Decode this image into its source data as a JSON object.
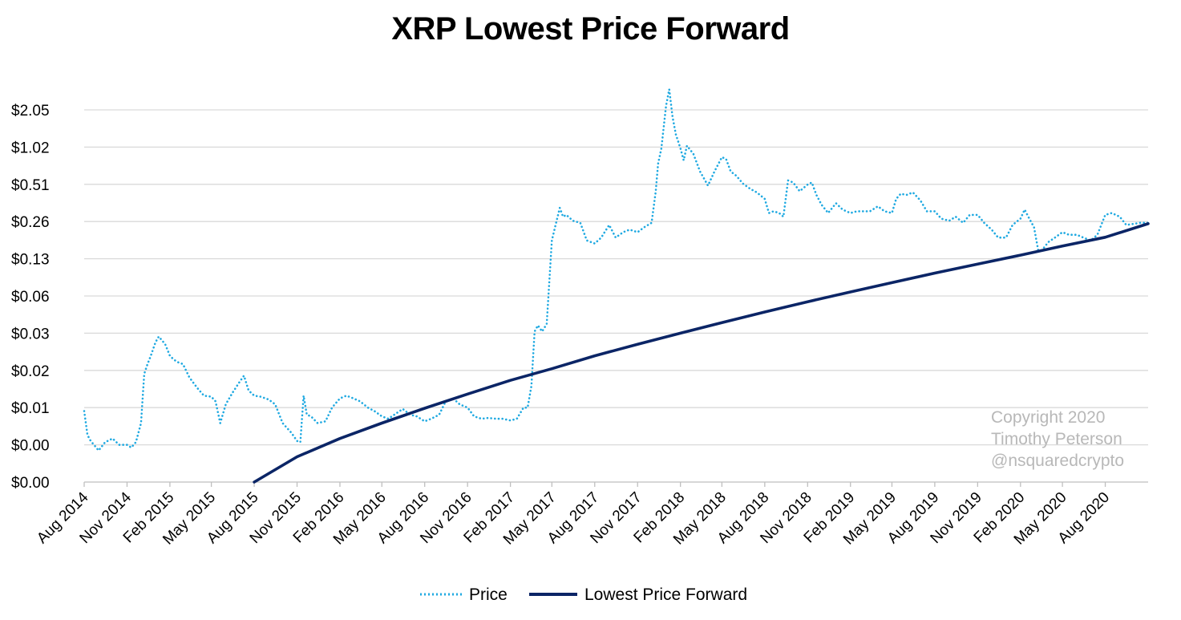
{
  "chart_data": {
    "type": "line",
    "title": "XRP Lowest Price Forward",
    "y_scale": "log",
    "y_ticks": [
      "$0.00",
      "$0.00",
      "$0.01",
      "$0.02",
      "$0.03",
      "$0.06",
      "$0.13",
      "$0.26",
      "$0.51",
      "$1.02",
      "$2.05"
    ],
    "y_tick_values": [
      0.002,
      0.004,
      0.008,
      0.016,
      0.032,
      0.064,
      0.128,
      0.256,
      0.512,
      1.024,
      2.048
    ],
    "x_ticks": [
      "Aug 2014",
      "Nov 2014",
      "Feb 2015",
      "May 2015",
      "Aug 2015",
      "Nov 2015",
      "Feb 2016",
      "May 2016",
      "Aug 2016",
      "Nov 2016",
      "Feb 2017",
      "May 2017",
      "Aug 2017",
      "Nov 2017",
      "Feb 2018",
      "May 2018",
      "Aug 2018",
      "Nov 2018",
      "Feb 2019",
      "May 2019",
      "Aug 2019",
      "Nov 2019",
      "Feb 2020",
      "May 2020",
      "Aug 2020"
    ],
    "x_range": [
      "2014-08-01",
      "2020-11-01"
    ],
    "legend_position": "bottom",
    "gridlines": "horizontal",
    "series": [
      {
        "name": "Price",
        "style": "dotted",
        "color": "#1fa9e1",
        "points": [
          [
            "2014-08-01",
            0.0075
          ],
          [
            "2014-08-08",
            0.0048
          ],
          [
            "2014-08-15",
            0.0043
          ],
          [
            "2014-08-22",
            0.004
          ],
          [
            "2014-09-01",
            0.0036
          ],
          [
            "2014-09-15",
            0.0042
          ],
          [
            "2014-10-01",
            0.0045
          ],
          [
            "2014-10-15",
            0.004
          ],
          [
            "2014-11-01",
            0.004
          ],
          [
            "2014-11-10",
            0.0038
          ],
          [
            "2014-11-20",
            0.0042
          ],
          [
            "2014-12-01",
            0.006
          ],
          [
            "2014-12-08",
            0.015
          ],
          [
            "2014-12-15",
            0.018
          ],
          [
            "2014-12-22",
            0.021
          ],
          [
            "2015-01-01",
            0.027
          ],
          [
            "2015-01-08",
            0.03
          ],
          [
            "2015-01-15",
            0.028
          ],
          [
            "2015-01-22",
            0.026
          ],
          [
            "2015-02-01",
            0.021
          ],
          [
            "2015-02-10",
            0.0195
          ],
          [
            "2015-02-20",
            0.0185
          ],
          [
            "2015-03-01",
            0.018
          ],
          [
            "2015-03-15",
            0.014
          ],
          [
            "2015-04-01",
            0.0115
          ],
          [
            "2015-04-15",
            0.01
          ],
          [
            "2015-05-01",
            0.0098
          ],
          [
            "2015-05-10",
            0.009
          ],
          [
            "2015-05-20",
            0.006
          ],
          [
            "2015-06-01",
            0.0085
          ],
          [
            "2015-06-15",
            0.0105
          ],
          [
            "2015-07-01",
            0.013
          ],
          [
            "2015-07-10",
            0.0145
          ],
          [
            "2015-07-20",
            0.011
          ],
          [
            "2015-08-01",
            0.01
          ],
          [
            "2015-08-15",
            0.0098
          ],
          [
            "2015-09-01",
            0.0093
          ],
          [
            "2015-09-15",
            0.0085
          ],
          [
            "2015-10-01",
            0.006
          ],
          [
            "2015-10-10",
            0.0055
          ],
          [
            "2015-10-20",
            0.005
          ],
          [
            "2015-11-01",
            0.0043
          ],
          [
            "2015-11-08",
            0.0042
          ],
          [
            "2015-11-15",
            0.01
          ],
          [
            "2015-11-22",
            0.007
          ],
          [
            "2015-12-01",
            0.0068
          ],
          [
            "2015-12-15",
            0.006
          ],
          [
            "2016-01-01",
            0.0062
          ],
          [
            "2016-01-15",
            0.008
          ],
          [
            "2016-02-01",
            0.0095
          ],
          [
            "2016-02-15",
            0.01
          ],
          [
            "2016-03-01",
            0.0095
          ],
          [
            "2016-03-15",
            0.009
          ],
          [
            "2016-04-01",
            0.008
          ],
          [
            "2016-04-15",
            0.0075
          ],
          [
            "2016-05-01",
            0.0068
          ],
          [
            "2016-05-15",
            0.0065
          ],
          [
            "2016-06-01",
            0.0072
          ],
          [
            "2016-06-15",
            0.0078
          ],
          [
            "2016-07-01",
            0.007
          ],
          [
            "2016-07-15",
            0.0068
          ],
          [
            "2016-08-01",
            0.0062
          ],
          [
            "2016-08-15",
            0.0065
          ],
          [
            "2016-09-01",
            0.007
          ],
          [
            "2016-09-15",
            0.009
          ],
          [
            "2016-10-01",
            0.0095
          ],
          [
            "2016-10-15",
            0.0085
          ],
          [
            "2016-11-01",
            0.008
          ],
          [
            "2016-11-15",
            0.0068
          ],
          [
            "2016-12-01",
            0.0065
          ],
          [
            "2016-12-15",
            0.0066
          ],
          [
            "2017-01-01",
            0.0065
          ],
          [
            "2017-01-15",
            0.0065
          ],
          [
            "2017-02-01",
            0.0063
          ],
          [
            "2017-02-15",
            0.0065
          ],
          [
            "2017-03-01",
            0.008
          ],
          [
            "2017-03-10",
            0.008
          ],
          [
            "2017-03-18",
            0.012
          ],
          [
            "2017-03-25",
            0.033
          ],
          [
            "2017-04-01",
            0.037
          ],
          [
            "2017-04-10",
            0.033
          ],
          [
            "2017-04-20",
            0.038
          ],
          [
            "2017-05-01",
            0.18
          ],
          [
            "2017-05-10",
            0.25
          ],
          [
            "2017-05-18",
            0.33
          ],
          [
            "2017-05-25",
            0.28
          ],
          [
            "2017-06-01",
            0.29
          ],
          [
            "2017-06-15",
            0.26
          ],
          [
            "2017-07-01",
            0.25
          ],
          [
            "2017-07-15",
            0.18
          ],
          [
            "2017-08-01",
            0.17
          ],
          [
            "2017-08-15",
            0.19
          ],
          [
            "2017-09-01",
            0.24
          ],
          [
            "2017-09-15",
            0.19
          ],
          [
            "2017-10-01",
            0.21
          ],
          [
            "2017-10-15",
            0.22
          ],
          [
            "2017-11-01",
            0.21
          ],
          [
            "2017-11-15",
            0.23
          ],
          [
            "2017-12-01",
            0.25
          ],
          [
            "2017-12-10",
            0.45
          ],
          [
            "2017-12-15",
            0.75
          ],
          [
            "2017-12-22",
            1.0
          ],
          [
            "2018-01-01",
            2.2
          ],
          [
            "2018-01-08",
            3.0
          ],
          [
            "2018-01-15",
            1.8
          ],
          [
            "2018-01-22",
            1.3
          ],
          [
            "2018-02-01",
            1.0
          ],
          [
            "2018-02-08",
            0.8
          ],
          [
            "2018-02-15",
            1.05
          ],
          [
            "2018-03-01",
            0.9
          ],
          [
            "2018-03-15",
            0.65
          ],
          [
            "2018-04-01",
            0.5
          ],
          [
            "2018-04-15",
            0.65
          ],
          [
            "2018-05-01",
            0.85
          ],
          [
            "2018-05-10",
            0.82
          ],
          [
            "2018-05-20",
            0.65
          ],
          [
            "2018-06-01",
            0.6
          ],
          [
            "2018-06-15",
            0.52
          ],
          [
            "2018-07-01",
            0.47
          ],
          [
            "2018-07-15",
            0.44
          ],
          [
            "2018-08-01",
            0.39
          ],
          [
            "2018-08-10",
            0.3
          ],
          [
            "2018-08-20",
            0.31
          ],
          [
            "2018-09-01",
            0.3
          ],
          [
            "2018-09-10",
            0.28
          ],
          [
            "2018-09-20",
            0.55
          ],
          [
            "2018-10-01",
            0.53
          ],
          [
            "2018-10-15",
            0.45
          ],
          [
            "2018-11-01",
            0.51
          ],
          [
            "2018-11-10",
            0.53
          ],
          [
            "2018-11-20",
            0.42
          ],
          [
            "2018-12-01",
            0.35
          ],
          [
            "2018-12-15",
            0.3
          ],
          [
            "2019-01-01",
            0.36
          ],
          [
            "2019-01-15",
            0.32
          ],
          [
            "2019-02-01",
            0.3
          ],
          [
            "2019-02-15",
            0.31
          ],
          [
            "2019-03-01",
            0.31
          ],
          [
            "2019-03-15",
            0.31
          ],
          [
            "2019-04-01",
            0.34
          ],
          [
            "2019-04-15",
            0.31
          ],
          [
            "2019-05-01",
            0.3
          ],
          [
            "2019-05-10",
            0.39
          ],
          [
            "2019-05-20",
            0.43
          ],
          [
            "2019-06-01",
            0.42
          ],
          [
            "2019-06-15",
            0.44
          ],
          [
            "2019-07-01",
            0.38
          ],
          [
            "2019-07-15",
            0.31
          ],
          [
            "2019-08-01",
            0.31
          ],
          [
            "2019-08-15",
            0.27
          ],
          [
            "2019-09-01",
            0.26
          ],
          [
            "2019-09-15",
            0.28
          ],
          [
            "2019-10-01",
            0.25
          ],
          [
            "2019-10-15",
            0.29
          ],
          [
            "2019-11-01",
            0.29
          ],
          [
            "2019-11-15",
            0.25
          ],
          [
            "2019-12-01",
            0.22
          ],
          [
            "2019-12-15",
            0.19
          ],
          [
            "2020-01-01",
            0.19
          ],
          [
            "2020-01-15",
            0.24
          ],
          [
            "2020-02-01",
            0.27
          ],
          [
            "2020-02-10",
            0.32
          ],
          [
            "2020-02-20",
            0.27
          ],
          [
            "2020-03-01",
            0.23
          ],
          [
            "2020-03-10",
            0.15
          ],
          [
            "2020-03-18",
            0.15
          ],
          [
            "2020-04-01",
            0.175
          ],
          [
            "2020-04-15",
            0.19
          ],
          [
            "2020-05-01",
            0.21
          ],
          [
            "2020-05-15",
            0.2
          ],
          [
            "2020-06-01",
            0.2
          ],
          [
            "2020-06-15",
            0.19
          ],
          [
            "2020-07-01",
            0.18
          ],
          [
            "2020-07-15",
            0.2
          ],
          [
            "2020-08-01",
            0.29
          ],
          [
            "2020-08-15",
            0.3
          ],
          [
            "2020-09-01",
            0.28
          ],
          [
            "2020-09-15",
            0.24
          ],
          [
            "2020-10-01",
            0.245
          ],
          [
            "2020-10-15",
            0.25
          ],
          [
            "2020-11-01",
            0.25
          ]
        ]
      },
      {
        "name": "Lowest Price Forward",
        "style": "solid",
        "color": "#0b2566",
        "points": [
          [
            "2015-08-01",
            0.002
          ],
          [
            "2015-11-01",
            0.0032
          ],
          [
            "2016-02-01",
            0.0045
          ],
          [
            "2016-05-01",
            0.006
          ],
          [
            "2016-08-01",
            0.0079
          ],
          [
            "2016-11-01",
            0.0103
          ],
          [
            "2017-02-01",
            0.0133
          ],
          [
            "2017-05-01",
            0.0165
          ],
          [
            "2017-08-01",
            0.021
          ],
          [
            "2017-11-01",
            0.026
          ],
          [
            "2018-02-01",
            0.032
          ],
          [
            "2018-05-01",
            0.039
          ],
          [
            "2018-08-01",
            0.0475
          ],
          [
            "2018-11-01",
            0.0575
          ],
          [
            "2019-02-01",
            0.069
          ],
          [
            "2019-05-01",
            0.082
          ],
          [
            "2019-08-01",
            0.098
          ],
          [
            "2019-11-01",
            0.116
          ],
          [
            "2020-02-01",
            0.137
          ],
          [
            "2020-05-01",
            0.162
          ],
          [
            "2020-08-01",
            0.191
          ],
          [
            "2020-11-01",
            0.246
          ]
        ]
      }
    ]
  },
  "copyright": {
    "line1": "Copyright 2020",
    "line2": "Timothy Peterson",
    "line3": "@nsquaredcrypto"
  }
}
